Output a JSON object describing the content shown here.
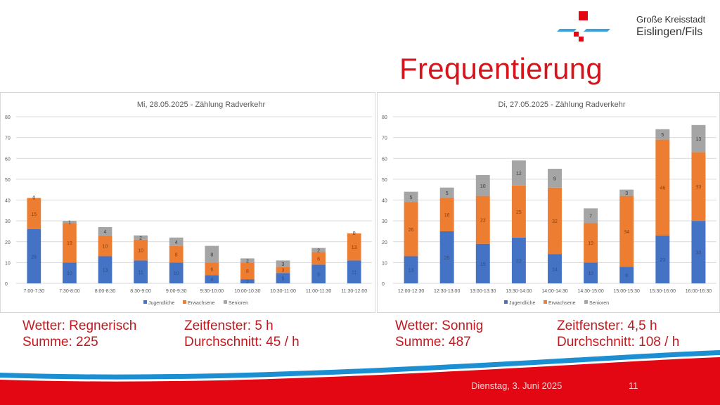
{
  "header": {
    "city_line1": "Große Kreisstadt",
    "city_line2": "Eislingen/Fils",
    "title": "Frequentierung"
  },
  "colors": {
    "title_red": "#d6141b",
    "jugendliche": "#4472c4",
    "erwachsene": "#ed7d31",
    "senioren": "#a5a5a5",
    "footer_red": "#e30613",
    "footer_blue": "#1b8fd2"
  },
  "chart_data": [
    {
      "type": "bar",
      "stacked": true,
      "title": "Mi, 28.05.2025 - Zählung Radverkehr",
      "xlabel": "",
      "ylabel": "",
      "ylim": [
        0,
        80
      ],
      "yticks": [
        0,
        10,
        20,
        30,
        40,
        50,
        60,
        70,
        80
      ],
      "grid": true,
      "legend": "bottom",
      "categories": [
        "7:00-7:30",
        "7:30-8:00",
        "8:00-8:30",
        "8:30-9:00",
        "9:00-9:30",
        "9:30-10:00",
        "10:00-10:30",
        "10:30-11:00",
        "11:00-11:30",
        "11:30-12:00"
      ],
      "series": [
        {
          "name": "Jugendliche",
          "values": [
            26,
            10,
            13,
            11,
            10,
            4,
            2,
            5,
            9,
            11
          ]
        },
        {
          "name": "Erwachsene",
          "values": [
            15,
            19,
            10,
            10,
            8,
            6,
            8,
            3,
            6,
            13
          ]
        },
        {
          "name": "Senioren",
          "values": [
            0,
            1,
            4,
            2,
            4,
            8,
            2,
            3,
            2,
            0
          ]
        }
      ]
    },
    {
      "type": "bar",
      "stacked": true,
      "title": "Di, 27.05.2025 - Zählung Radverkehr",
      "xlabel": "",
      "ylabel": "",
      "ylim": [
        0,
        80
      ],
      "yticks": [
        0,
        10,
        20,
        30,
        40,
        50,
        60,
        70,
        80
      ],
      "grid": true,
      "legend": "bottom",
      "categories": [
        "12:00-12:30",
        "12:30-13:00",
        "13:00-13:30",
        "13:30-14:00",
        "14:00-14:30",
        "14:30-15:00",
        "15:00-15:30",
        "15:30-16:00",
        "16:00-16:30"
      ],
      "series": [
        {
          "name": "Jugendliche",
          "values": [
            13,
            25,
            19,
            22,
            14,
            10,
            8,
            23,
            30
          ]
        },
        {
          "name": "Erwachsene",
          "values": [
            26,
            16,
            23,
            25,
            32,
            19,
            34,
            46,
            33
          ]
        },
        {
          "name": "Senioren",
          "values": [
            5,
            5,
            10,
            12,
            9,
            7,
            3,
            5,
            13
          ]
        }
      ]
    }
  ],
  "stats_left": {
    "weather": "Wetter: Regnerisch",
    "sum": "Summe: 225",
    "window": "Zeitfenster: 5 h",
    "average": "Durchschnitt: 45 / h"
  },
  "stats_right": {
    "weather": "Wetter: Sonnig",
    "sum": "Summe: 487",
    "window": "Zeitfenster: 4,5 h",
    "average": "Durchschnitt: 108 / h"
  },
  "footer": {
    "date": "Dienstag, 3. Juni 2025",
    "page": "11"
  }
}
